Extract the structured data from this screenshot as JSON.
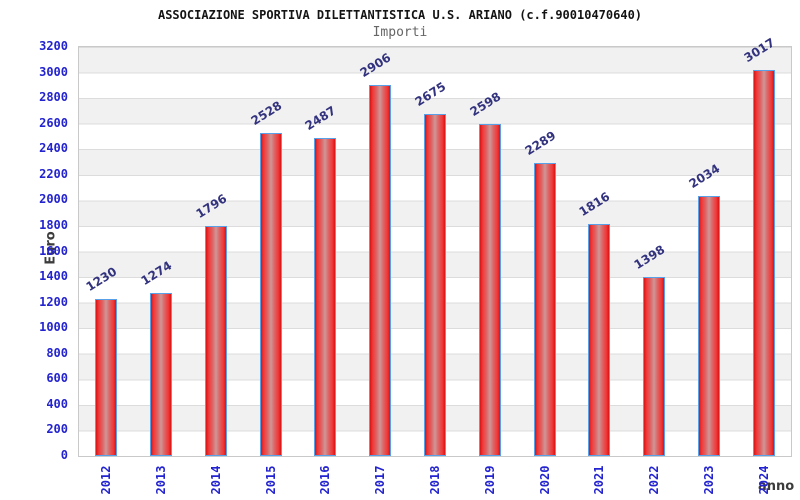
{
  "header": {
    "title": "ASSOCIAZIONE SPORTIVA DILETTANTISTICA U.S. ARIANO (c.f.90010470640)",
    "subtitle": "Importi"
  },
  "chart_data": {
    "type": "bar",
    "title": "ASSOCIAZIONE SPORTIVA DILETTANTISTICA U.S. ARIANO (c.f.90010470640)",
    "subtitle": "Importi",
    "xlabel": "anno",
    "ylabel": "Euro",
    "categories": [
      "2012",
      "2013",
      "2014",
      "2015",
      "2016",
      "2017",
      "2018",
      "2019",
      "2020",
      "2021",
      "2022",
      "2023",
      "2024"
    ],
    "values": [
      1230,
      1274,
      1796,
      2528,
      2487,
      2906,
      2675,
      2598,
      2289,
      1816,
      1398,
      2034,
      3017
    ],
    "ylim": [
      0,
      3200
    ],
    "ytick_step": 200,
    "yticks": [
      0,
      200,
      400,
      600,
      800,
      1000,
      1200,
      1400,
      1600,
      1800,
      2000,
      2200,
      2400,
      2600,
      2800,
      3000,
      3200
    ],
    "grid": "horizontal, alternating gray/white bands every 200",
    "legend": "none",
    "colors": {
      "bar_fill_edge": "#d91414",
      "bar_fill_center": "#cf9696",
      "bar_border": "#58a0e8",
      "tick_label": "#2323cf",
      "value_label": "#32327e",
      "axis_title": "#3c3c3c",
      "band_gray": "#f1f1f1",
      "gridline": "#dcdcdc",
      "title": "#141414",
      "subtitle": "#666666"
    }
  }
}
